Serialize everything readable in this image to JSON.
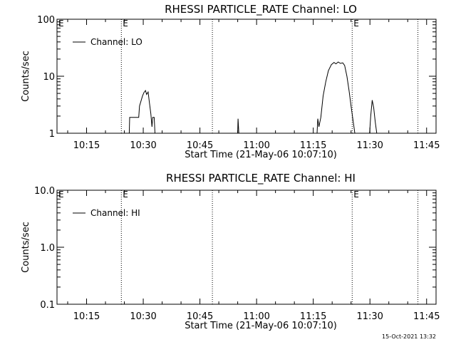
{
  "footer_timestamp": "15-Oct-2021 13:32",
  "chart_data": [
    {
      "type": "line",
      "title": "RHESSI PARTICLE_RATE Channel: LO",
      "xlabel": "Start Time (21-May-06 10:07:10)",
      "ylabel": "Counts/sec",
      "yscale": "log",
      "ylim": [
        1,
        100
      ],
      "xlim_minutes": [
        7.17,
        47.5
      ],
      "x_tick_values_minutes": [
        15,
        30,
        45,
        60,
        75,
        90,
        105
      ],
      "x_tick_labels": [
        "10:15",
        "10:30",
        "10:45",
        "11:00",
        "11:15",
        "11:30",
        "11:45"
      ],
      "y_tick_labels": [
        "1",
        "10",
        "100"
      ],
      "y_tick_values": [
        1,
        10,
        100
      ],
      "legend": "Channel: LO",
      "legend_placement": "top-left",
      "event_markers": [
        {
          "minute": 24.2,
          "label": "E"
        },
        {
          "minute": 48.3,
          "label": ""
        },
        {
          "minute": 85.3,
          "label": "E"
        },
        {
          "minute": 102.7,
          "label": ""
        }
      ],
      "series": [
        {
          "name": "Channel: LO",
          "points": [
            [
              26.3,
              1.0
            ],
            [
              26.4,
              1.9
            ],
            [
              28.8,
              1.9
            ],
            [
              29.0,
              3.0
            ],
            [
              29.8,
              4.5
            ],
            [
              30.2,
              5.2
            ],
            [
              30.6,
              5.6
            ],
            [
              30.9,
              4.8
            ],
            [
              31.3,
              5.3
            ],
            [
              31.6,
              3.6
            ],
            [
              32.0,
              2.2
            ],
            [
              32.3,
              1.3
            ],
            [
              32.5,
              1.9
            ],
            [
              32.9,
              1.9
            ],
            [
              33.1,
              1.0
            ],
            [
              33.3,
              1.0
            ],
            [
              55.0,
              1.0
            ],
            [
              55.1,
              1.8
            ],
            [
              55.3,
              1.0
            ],
            [
              76.0,
              1.0
            ],
            [
              76.2,
              1.8
            ],
            [
              76.5,
              1.3
            ],
            [
              77.0,
              1.9
            ],
            [
              77.6,
              4.5
            ],
            [
              78.3,
              8.0
            ],
            [
              79.0,
              12.5
            ],
            [
              79.8,
              16.0
            ],
            [
              80.5,
              17.5
            ],
            [
              81.0,
              16.5
            ],
            [
              81.6,
              17.8
            ],
            [
              82.2,
              16.8
            ],
            [
              82.8,
              17.2
            ],
            [
              83.3,
              15.5
            ],
            [
              83.9,
              10.0
            ],
            [
              84.5,
              5.5
            ],
            [
              85.0,
              3.0
            ],
            [
              85.7,
              1.4
            ],
            [
              86.0,
              1.0
            ],
            [
              89.9,
              1.0
            ],
            [
              90.2,
              2.0
            ],
            [
              90.6,
              3.8
            ],
            [
              91.0,
              2.8
            ],
            [
              91.4,
              1.6
            ],
            [
              91.8,
              1.0
            ]
          ]
        }
      ]
    },
    {
      "type": "line",
      "title": "RHESSI PARTICLE_RATE Channel: HI",
      "xlabel": "Start Time (21-May-06 10:07:10)",
      "ylabel": "Counts/sec",
      "yscale": "log",
      "ylim": [
        0.1,
        10
      ],
      "xlim_minutes": [
        7.17,
        47.5
      ],
      "x_tick_values_minutes": [
        15,
        30,
        45,
        60,
        75,
        90,
        105
      ],
      "x_tick_labels": [
        "10:15",
        "10:30",
        "10:45",
        "11:00",
        "11:15",
        "11:30",
        "11:45"
      ],
      "y_tick_labels": [
        "0.1",
        "1.0",
        "10.0"
      ],
      "y_tick_values": [
        0.1,
        1,
        10
      ],
      "legend": "Channel: HI",
      "legend_placement": "top-left",
      "event_markers": [
        {
          "minute": 24.2,
          "label": "E"
        },
        {
          "minute": 48.3,
          "label": ""
        },
        {
          "minute": 85.3,
          "label": "E"
        },
        {
          "minute": 102.7,
          "label": ""
        }
      ],
      "series": [
        {
          "name": "Channel: HI",
          "points": []
        }
      ]
    }
  ]
}
